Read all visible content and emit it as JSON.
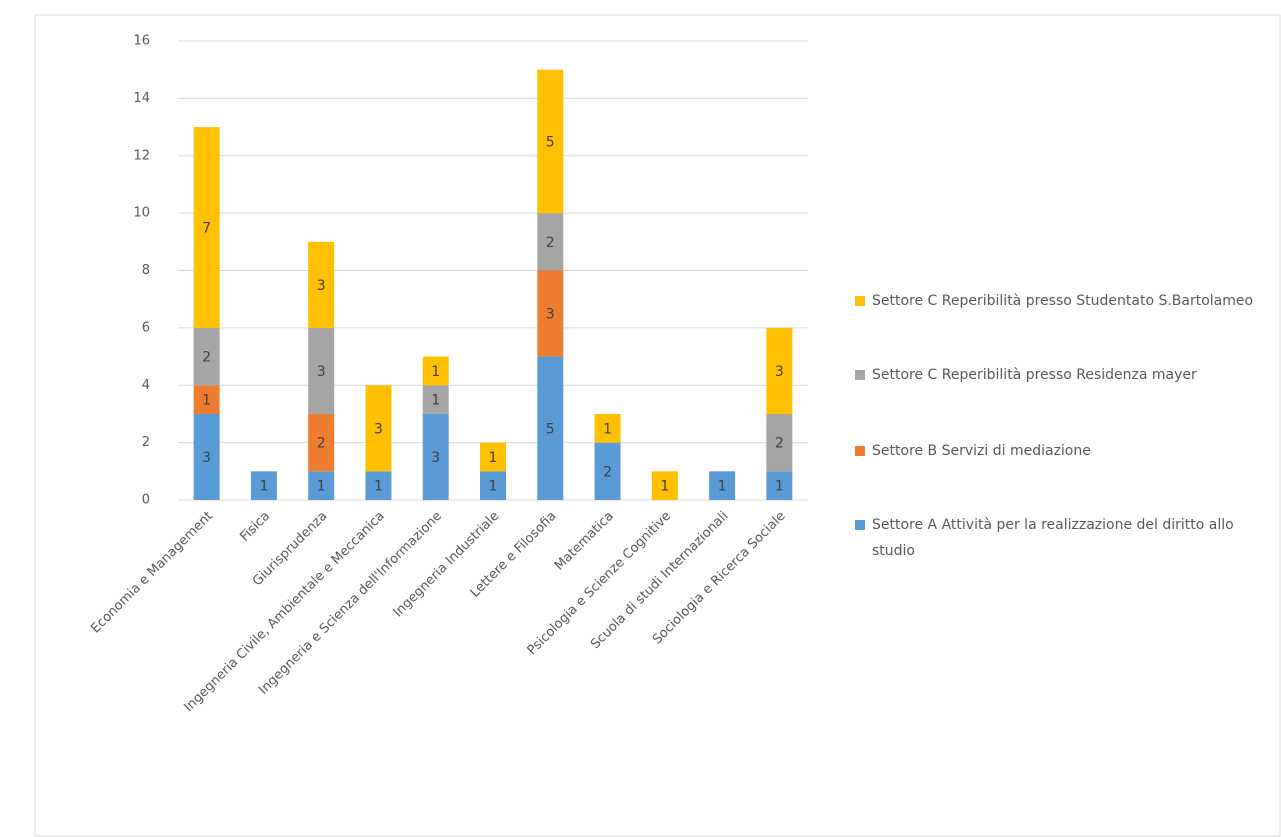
{
  "chart_data": {
    "type": "stacked_bar",
    "categories": [
      "Economia e Management",
      "Fisica",
      "Giurisprudenza",
      "Ingegneria Civile, Ambientale e Meccanica",
      "Ingegneria e Scienza dell'Informazione",
      "Ingegneria Industriale",
      "Lettere e Filosofia",
      "Matematica",
      "Psicologia e Scienze Cognitive",
      "Scuola di studi Internazionali",
      "Sociologia e Ricerca Sociale"
    ],
    "series": [
      {
        "name": "Settore A Attività per la realizzazione del diritto allo studio",
        "color": "#5b9bd5",
        "values": [
          3,
          1,
          1,
          1,
          3,
          1,
          5,
          2,
          null,
          1,
          1
        ]
      },
      {
        "name": "Settore B Servizi di mediazione",
        "color": "#ed7d31",
        "values": [
          1,
          null,
          2,
          null,
          null,
          null,
          3,
          null,
          null,
          null,
          null
        ]
      },
      {
        "name": "Settore C Reperibilità presso Residenza mayer",
        "color": "#a5a5a5",
        "values": [
          2,
          null,
          3,
          null,
          1,
          null,
          2,
          null,
          null,
          null,
          2
        ]
      },
      {
        "name": "Settore C Reperibilità presso Studentato S.Bartolameo",
        "color": "#ffc000",
        "values": [
          7,
          null,
          3,
          3,
          1,
          1,
          5,
          1,
          1,
          null,
          3
        ]
      }
    ],
    "ylim": [
      0,
      16
    ],
    "yticks": [
      0,
      2,
      4,
      6,
      8,
      10,
      12,
      14,
      16
    ],
    "grid": true,
    "legend": "right"
  }
}
